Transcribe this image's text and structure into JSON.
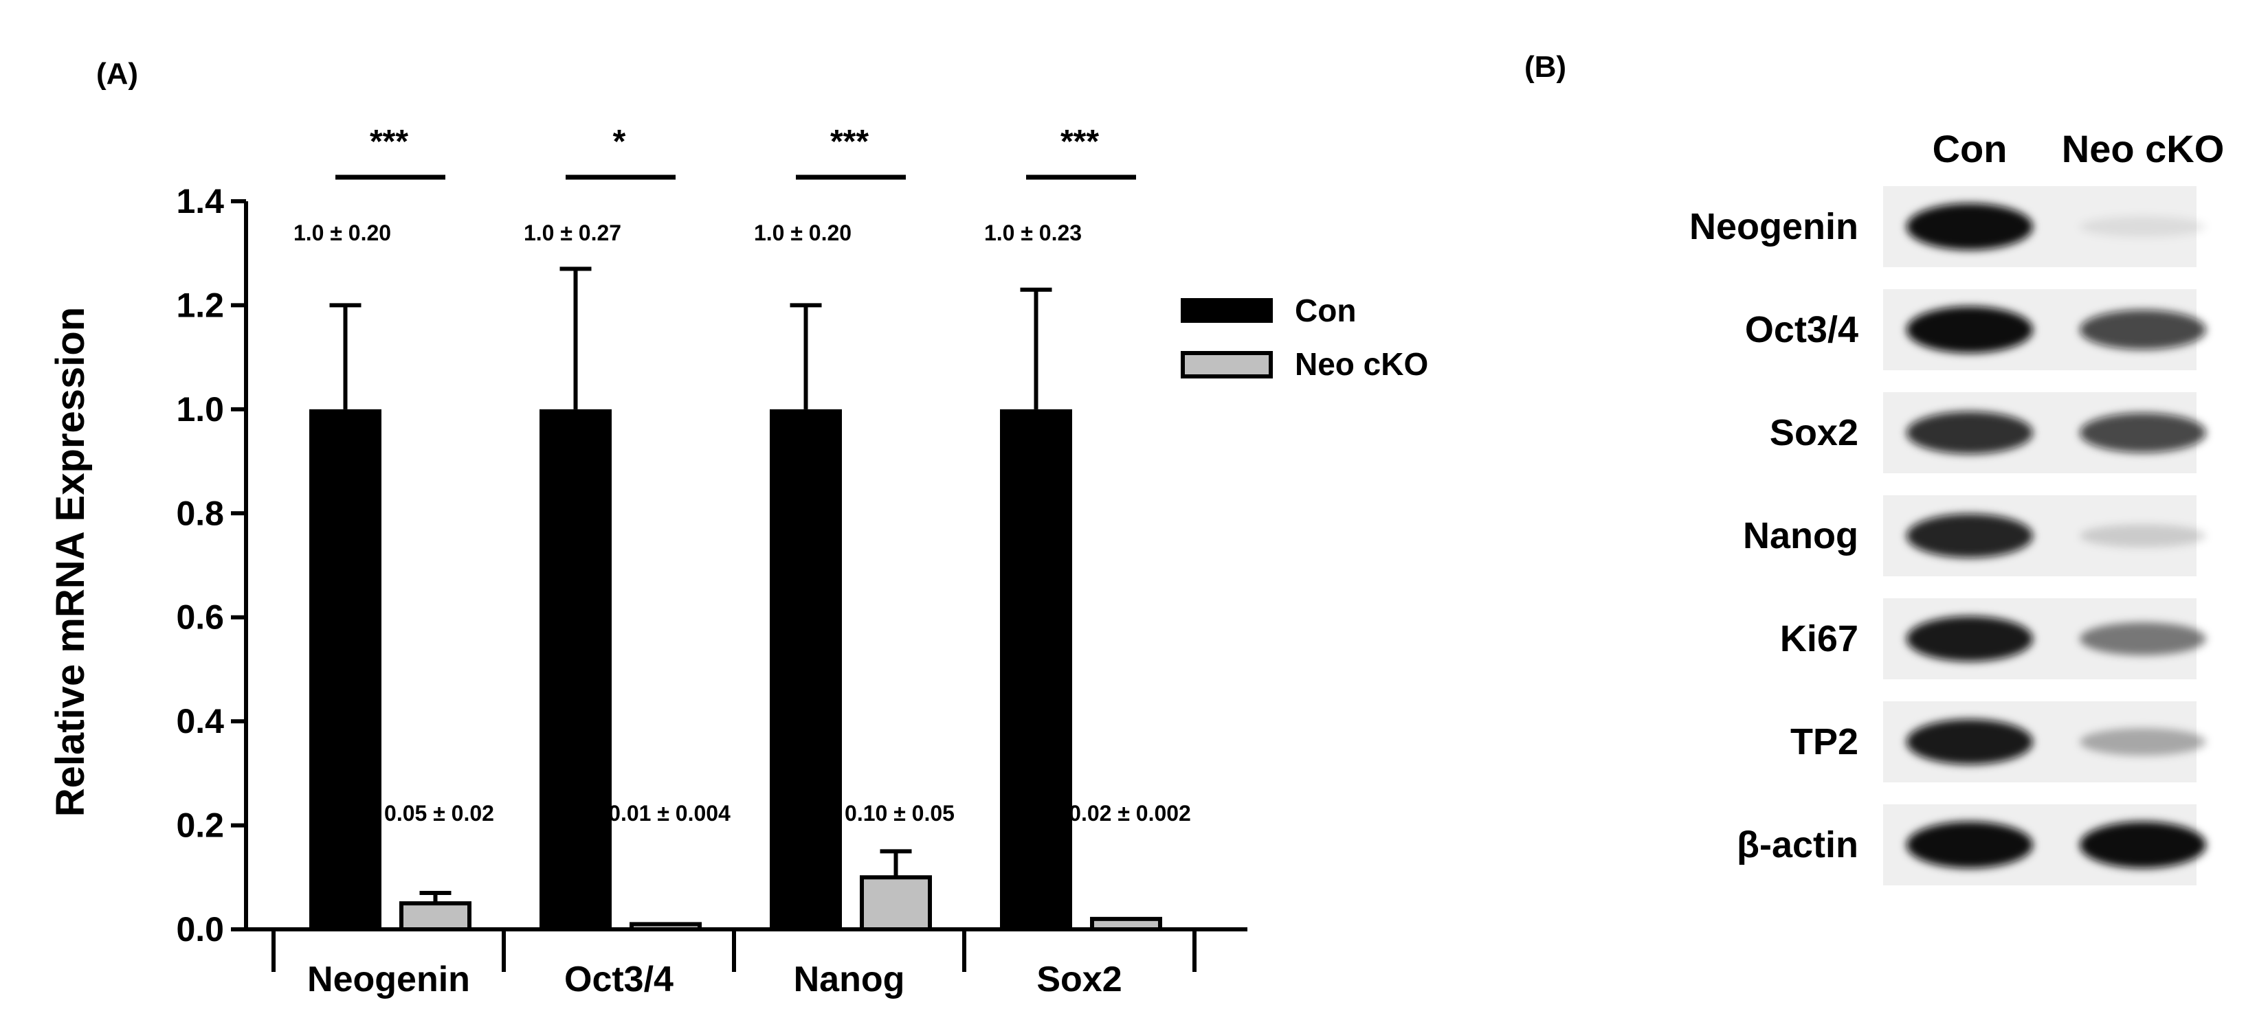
{
  "panels": {
    "a_label": "(A)",
    "b_label": "(B)"
  },
  "chart_data": {
    "type": "bar",
    "title": "",
    "xlabel": "",
    "ylabel": "Relative mRNA Expression",
    "ylim": [
      0,
      1.4
    ],
    "yticks": [
      "0.0",
      "0.2",
      "0.4",
      "0.6",
      "0.8",
      "1.0",
      "1.2",
      "1.4"
    ],
    "legend_position": "right",
    "grid": false,
    "categories": [
      "Neogenin",
      "Oct3/4",
      "Nanog",
      "Sox2"
    ],
    "series": [
      {
        "name": "Con",
        "color": "#000000",
        "values": [
          1.0,
          1.0,
          1.0,
          1.0
        ],
        "errors": [
          0.2,
          0.27,
          0.2,
          0.23
        ],
        "annotations": [
          "1.0 ± 0.20",
          "1.0 ± 0.27",
          "1.0 ± 0.20",
          "1.0 ± 0.23"
        ]
      },
      {
        "name": "Neo cKO",
        "color": "#c0c0c0",
        "values": [
          0.05,
          0.01,
          0.1,
          0.02
        ],
        "errors": [
          0.02,
          0.004,
          0.05,
          0.002
        ],
        "annotations": [
          "0.05 ± 0.02",
          "0.01 ± 0.004",
          "0.10 ± 0.05",
          "0.02 ± 0.002"
        ]
      }
    ],
    "significance": [
      "***",
      "*",
      "***",
      "***"
    ]
  },
  "blot": {
    "lanes": [
      "Con",
      "Neo cKO"
    ],
    "rows": [
      {
        "name": "Neogenin",
        "con": 1.0,
        "cko": 0.08
      },
      {
        "name": "Oct3/4",
        "con": 1.0,
        "cko": 0.75
      },
      {
        "name": "Sox2",
        "con": 0.85,
        "cko": 0.75
      },
      {
        "name": "Nanog",
        "con": 0.9,
        "cko": 0.15
      },
      {
        "name": "Ki67",
        "con": 0.95,
        "cko": 0.5
      },
      {
        "name": "TP2",
        "con": 0.95,
        "cko": 0.3
      },
      {
        "name": "β-actin",
        "con": 1.0,
        "cko": 1.0
      }
    ]
  }
}
